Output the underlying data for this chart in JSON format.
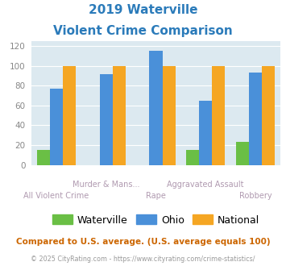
{
  "title_line1": "2019 Waterville",
  "title_line2": "Violent Crime Comparison",
  "title_color": "#2b7bba",
  "categories": [
    "All Violent Crime",
    "Murder & Mans...",
    "Rape",
    "Aggravated Assault",
    "Robbery"
  ],
  "waterville": [
    15,
    0,
    0,
    15,
    23
  ],
  "ohio": [
    77,
    92,
    115,
    65,
    93
  ],
  "national": [
    100,
    100,
    100,
    100,
    100
  ],
  "waterville_color": "#6abf45",
  "ohio_color": "#4a90d9",
  "national_color": "#f5a623",
  "ylim": [
    0,
    125
  ],
  "yticks": [
    0,
    20,
    40,
    60,
    80,
    100,
    120
  ],
  "bg_color": "#dce9f0",
  "xlabel_top": [
    "",
    "Murder & Mans...",
    "",
    "Aggravated Assault",
    ""
  ],
  "xlabel_bottom": [
    "All Violent Crime",
    "",
    "Rape",
    "",
    "Robbery"
  ],
  "footnote1": "Compared to U.S. average. (U.S. average equals 100)",
  "footnote2": "© 2025 CityRating.com - https://www.cityrating.com/crime-statistics/",
  "footnote1_color": "#cc6600",
  "footnote2_color": "#999999"
}
